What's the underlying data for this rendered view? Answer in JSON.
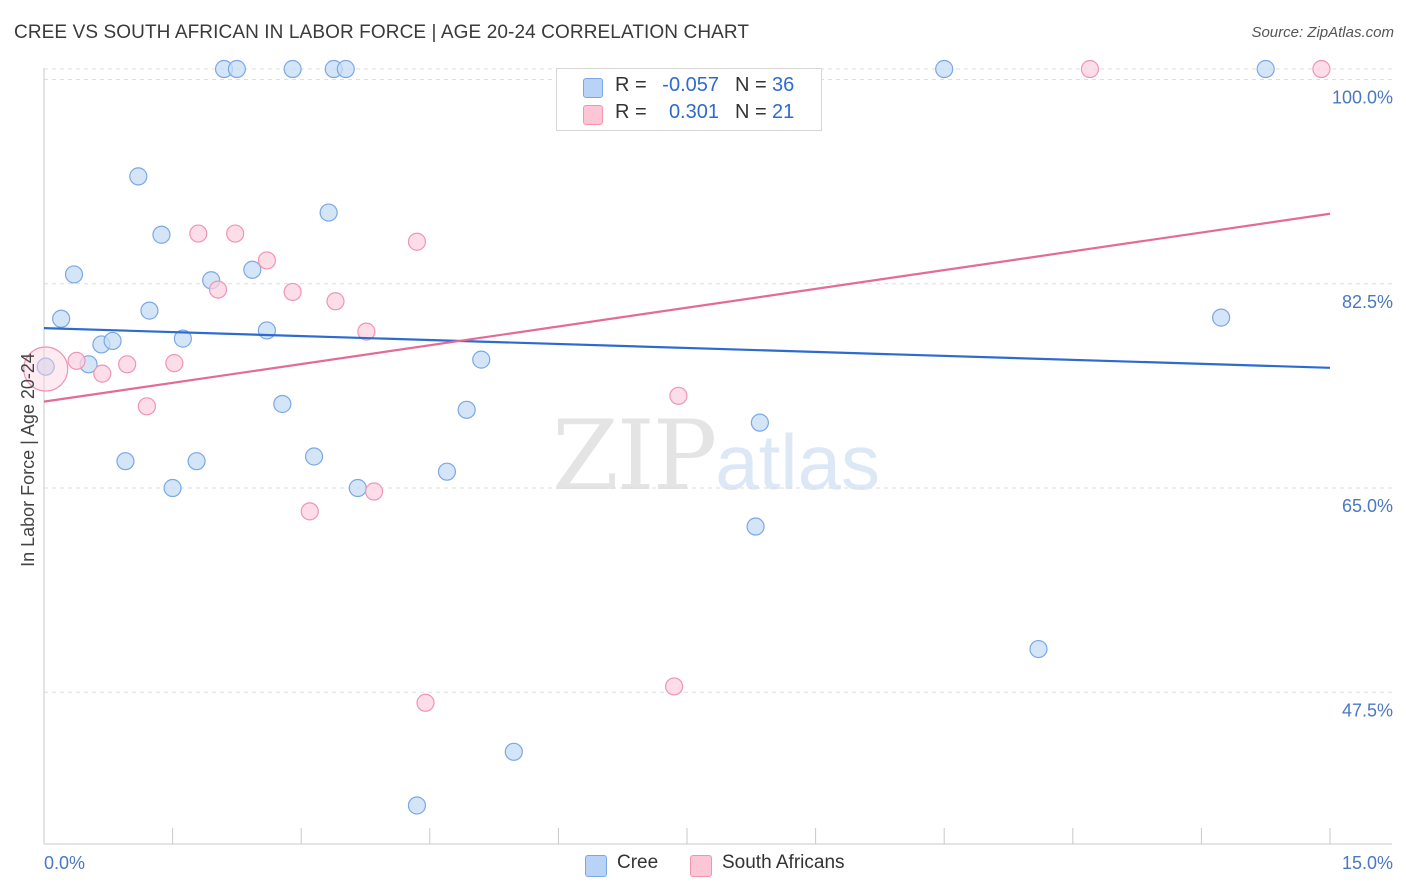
{
  "header": {
    "title": "CREE VS SOUTH AFRICAN IN LABOR FORCE | AGE 20-24 CORRELATION CHART",
    "source": "Source: ZipAtlas.com"
  },
  "watermark": {
    "zip": "ZIP",
    "atlas": "atlas"
  },
  "legend": {
    "rows": [
      {
        "r_label": "R =",
        "r_value": "-0.057",
        "n_label": "N =",
        "n_value": "36",
        "color": "#b8d3f5",
        "border": "#7aa8e6"
      },
      {
        "r_label": "R =",
        "r_value": "0.301",
        "n_label": "N =",
        "n_value": "21",
        "color": "#fcc6d6",
        "border": "#f095b2"
      }
    ],
    "bottom": [
      {
        "label": "Cree",
        "color": "#b8d3f5",
        "border": "#7aa8e6"
      },
      {
        "label": "South Africans",
        "color": "#fcc6d6",
        "border": "#f095b2"
      }
    ]
  },
  "colors": {
    "cree_fill": "#c7dcf5",
    "cree_stroke": "#7aa8e6",
    "cree_line": "#2d6bd0",
    "sa_fill": "#fcd2df",
    "sa_stroke": "#f095b2",
    "sa_line": "#e36b96",
    "grid": "#dedede",
    "axis_label": "#4a78c2"
  },
  "chart_data": {
    "type": "scatter",
    "title": "CREE VS SOUTH AFRICAN IN LABOR FORCE | AGE 20-24 CORRELATION CHART",
    "xlabel": "",
    "ylabel": "In Labor Force | Age 20-24",
    "xlim": [
      0,
      15
    ],
    "ylim": [
      34.5,
      101.5
    ],
    "x_tick_labels": [
      {
        "value": 0,
        "label": "0.0%"
      },
      {
        "value": 15,
        "label": "15.0%"
      }
    ],
    "y_ticks": [
      {
        "value": 100,
        "label": "100.0%"
      },
      {
        "value": 82.5,
        "label": "82.5%"
      },
      {
        "value": 65,
        "label": "65.0%"
      },
      {
        "value": 47.5,
        "label": "47.5%"
      }
    ],
    "grid": true,
    "legend_position": "top-center",
    "series": [
      {
        "name": "Cree",
        "r": -0.057,
        "n": 36,
        "trend": {
          "x": [
            0,
            15
          ],
          "y": [
            78.7,
            75.3
          ]
        },
        "points": [
          {
            "x": 0.02,
            "y": 75.4
          },
          {
            "x": 0.2,
            "y": 79.5
          },
          {
            "x": 0.35,
            "y": 83.3
          },
          {
            "x": 0.52,
            "y": 75.6
          },
          {
            "x": 0.67,
            "y": 77.3
          },
          {
            "x": 0.8,
            "y": 77.6
          },
          {
            "x": 0.95,
            "y": 67.3
          },
          {
            "x": 1.1,
            "y": 91.7
          },
          {
            "x": 1.23,
            "y": 80.2
          },
          {
            "x": 1.37,
            "y": 86.7
          },
          {
            "x": 1.5,
            "y": 65.0
          },
          {
            "x": 1.62,
            "y": 77.8
          },
          {
            "x": 1.78,
            "y": 67.3
          },
          {
            "x": 1.95,
            "y": 82.8
          },
          {
            "x": 2.1,
            "y": 100.9
          },
          {
            "x": 2.25,
            "y": 100.9
          },
          {
            "x": 2.43,
            "y": 83.7
          },
          {
            "x": 2.6,
            "y": 78.5
          },
          {
            "x": 2.78,
            "y": 72.2
          },
          {
            "x": 2.9,
            "y": 100.9
          },
          {
            "x": 3.15,
            "y": 67.7
          },
          {
            "x": 3.32,
            "y": 88.6
          },
          {
            "x": 3.38,
            "y": 100.9
          },
          {
            "x": 3.52,
            "y": 100.9
          },
          {
            "x": 3.66,
            "y": 65.0
          },
          {
            "x": 4.35,
            "y": 37.8
          },
          {
            "x": 4.7,
            "y": 66.4
          },
          {
            "x": 4.93,
            "y": 71.7
          },
          {
            "x": 5.1,
            "y": 76.0
          },
          {
            "x": 5.48,
            "y": 42.4
          },
          {
            "x": 8.3,
            "y": 61.7
          },
          {
            "x": 8.35,
            "y": 70.6
          },
          {
            "x": 10.5,
            "y": 100.9
          },
          {
            "x": 11.6,
            "y": 51.2
          },
          {
            "x": 13.73,
            "y": 79.6
          },
          {
            "x": 14.25,
            "y": 100.9
          }
        ]
      },
      {
        "name": "South Africans",
        "r": 0.301,
        "n": 21,
        "trend": {
          "x": [
            0,
            15
          ],
          "y": [
            72.4,
            88.5
          ]
        },
        "points": [
          {
            "x": 0.02,
            "y": 75.2,
            "large": true
          },
          {
            "x": 0.38,
            "y": 75.9
          },
          {
            "x": 0.68,
            "y": 74.8
          },
          {
            "x": 0.97,
            "y": 75.6
          },
          {
            "x": 1.2,
            "y": 72.0
          },
          {
            "x": 1.52,
            "y": 75.7
          },
          {
            "x": 1.8,
            "y": 86.8
          },
          {
            "x": 2.03,
            "y": 82.0
          },
          {
            "x": 2.23,
            "y": 86.8
          },
          {
            "x": 2.6,
            "y": 84.5
          },
          {
            "x": 2.9,
            "y": 81.8
          },
          {
            "x": 3.1,
            "y": 63.0
          },
          {
            "x": 3.4,
            "y": 81.0
          },
          {
            "x": 3.76,
            "y": 78.4
          },
          {
            "x": 3.85,
            "y": 64.7
          },
          {
            "x": 4.35,
            "y": 86.1
          },
          {
            "x": 4.45,
            "y": 46.6
          },
          {
            "x": 7.35,
            "y": 48.0
          },
          {
            "x": 7.4,
            "y": 72.9
          },
          {
            "x": 12.2,
            "y": 100.9
          },
          {
            "x": 14.9,
            "y": 100.9
          }
        ]
      }
    ]
  }
}
